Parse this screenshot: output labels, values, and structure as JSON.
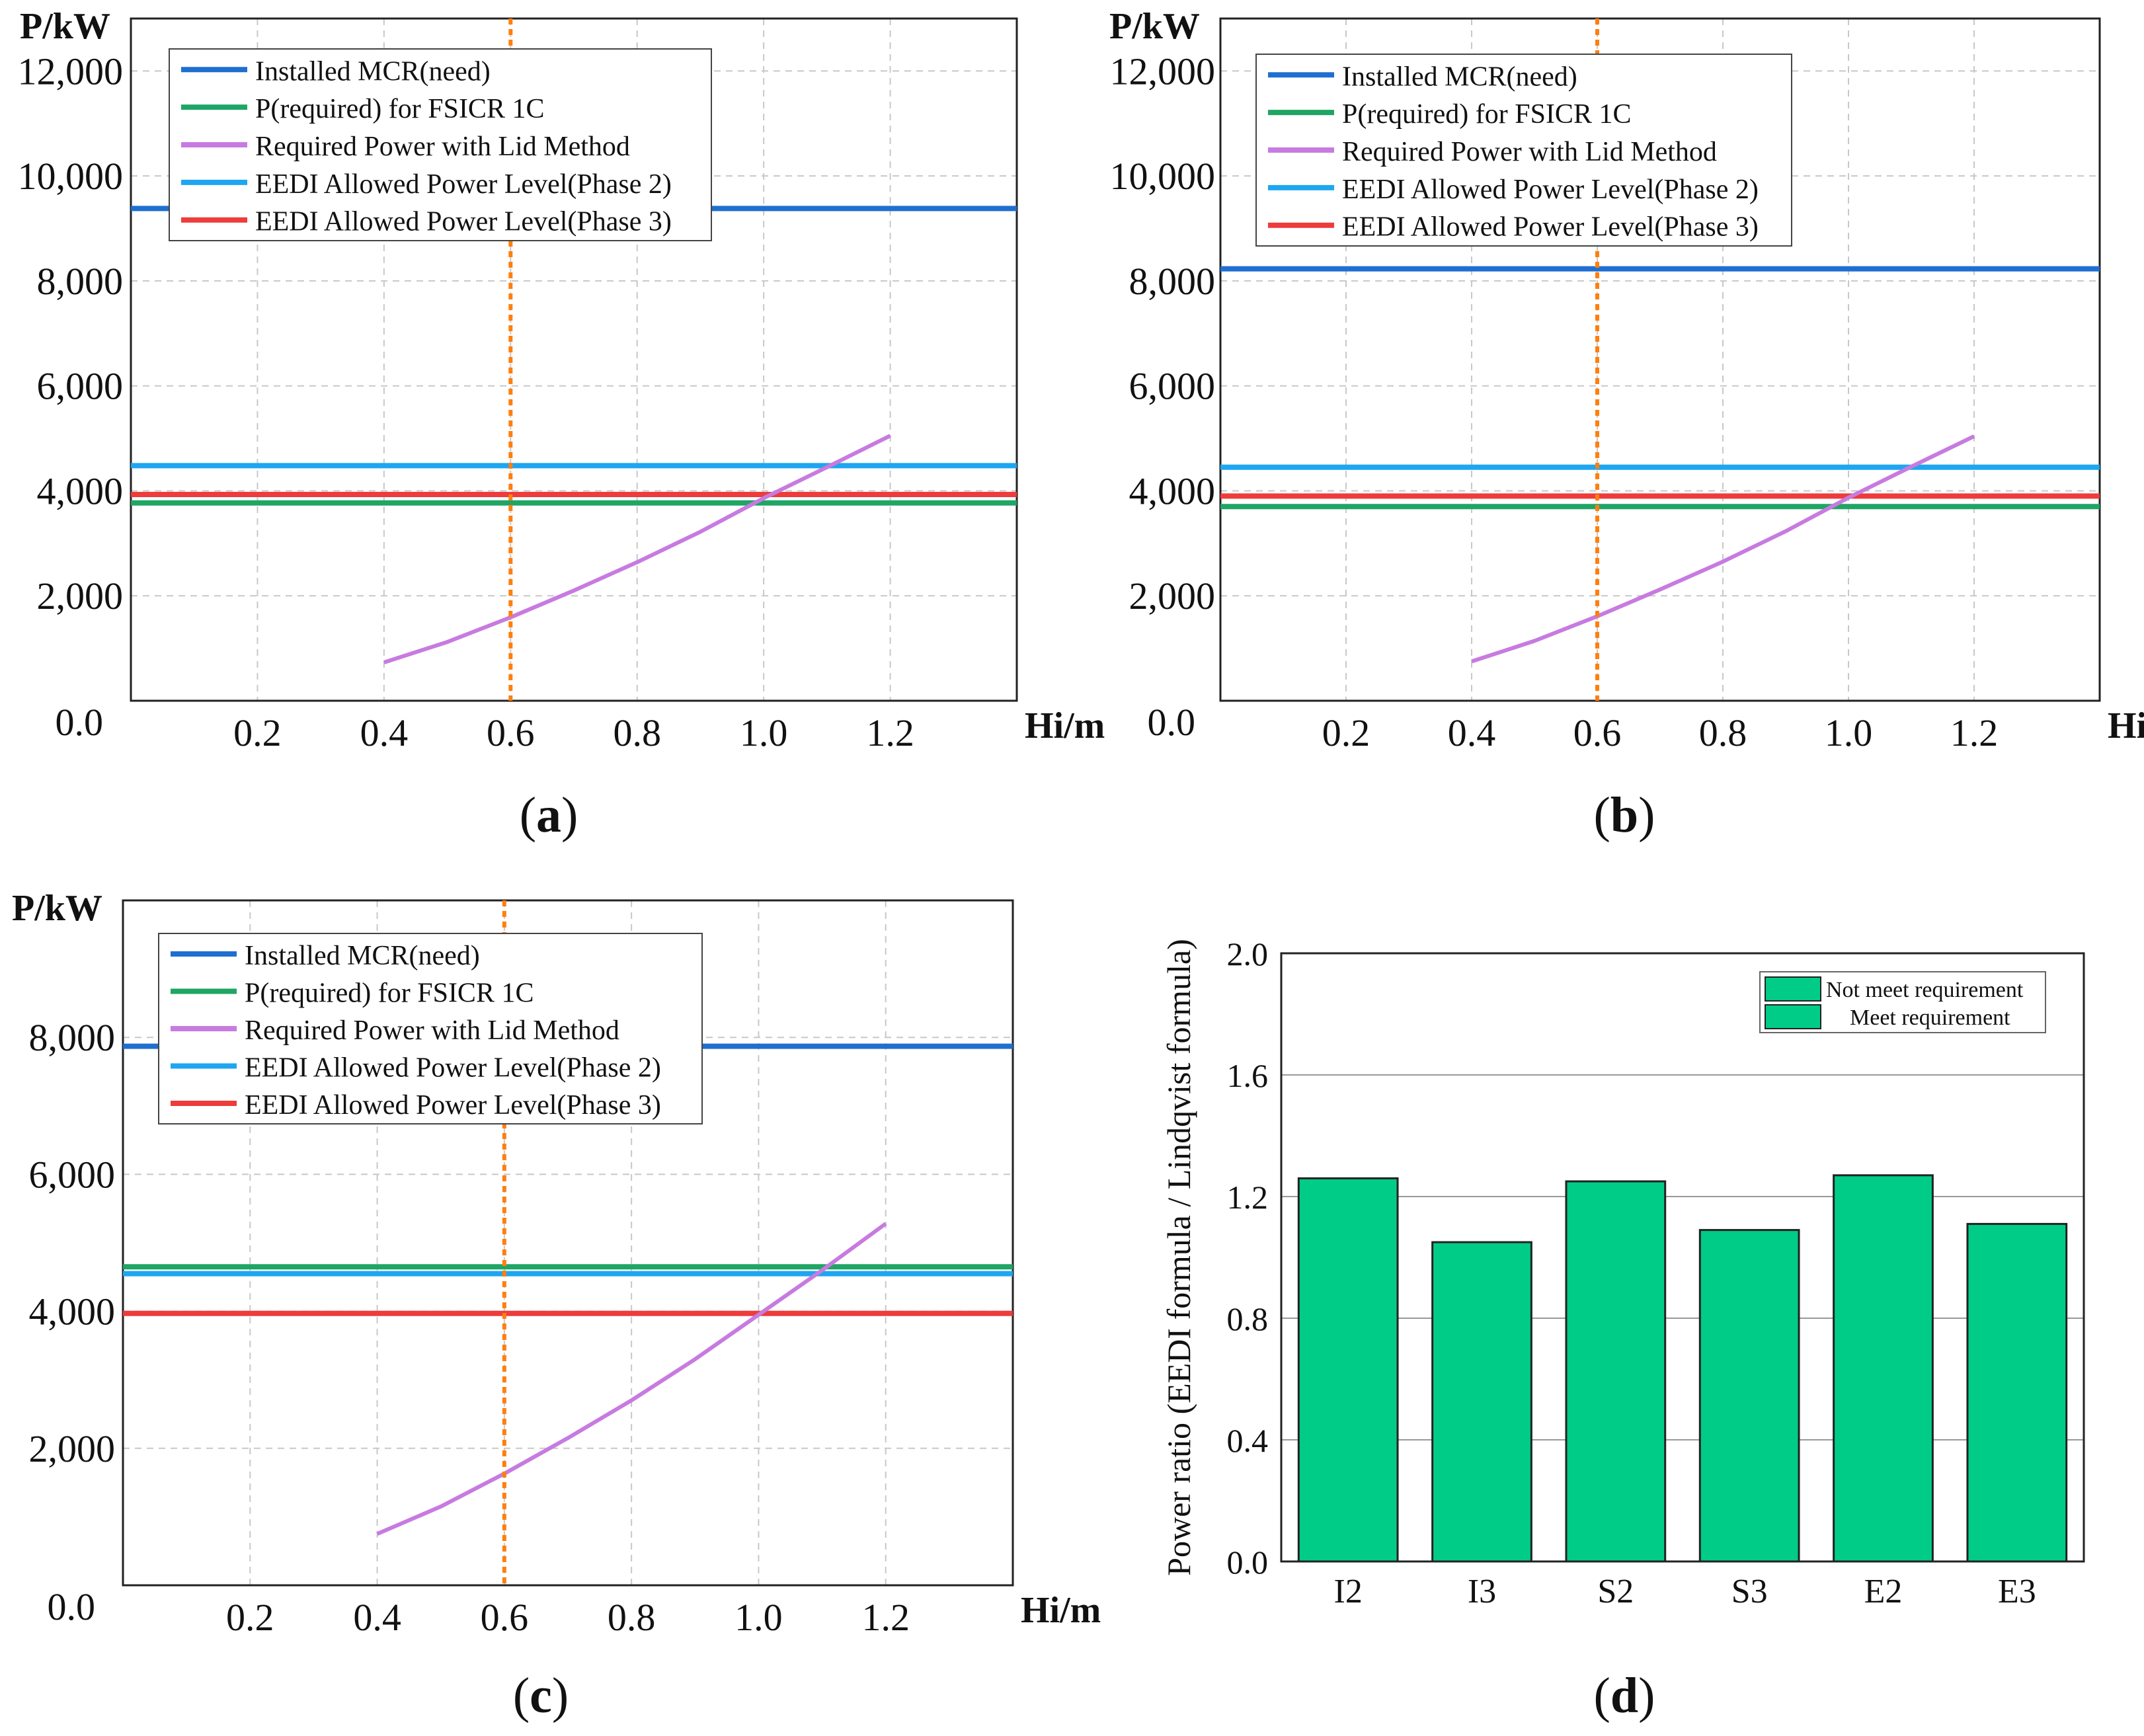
{
  "colors": {
    "mcr": "#1f6fd0",
    "fsicr": "#1fa564",
    "lid": "#c77be0",
    "phase2": "#1ea6f0",
    "phase3": "#ee3b3b",
    "marker": "#ff7f0e",
    "bar_fill": "#00cc88",
    "grid": "#c8c8c8"
  },
  "panel_labels": [
    "a",
    "b",
    "c",
    "d"
  ],
  "chart_data": [
    {
      "type": "line",
      "panel": "a",
      "ylabel": "P/kW",
      "xlabel": "Hi/m",
      "xlim": [
        0.0,
        1.4
      ],
      "ylim": [
        0,
        13000
      ],
      "y_ticks": [
        2000,
        4000,
        6000,
        8000,
        10000,
        12000
      ],
      "y_tick_labels": [
        "2,000",
        "4,000",
        "6,000",
        "8,000",
        "10,000",
        "12,000"
      ],
      "x_ticks": [
        0.2,
        0.4,
        0.6,
        0.8,
        1.0,
        1.2
      ],
      "x_tick_labels": [
        "0.2",
        "0.4",
        "0.6",
        "0.8",
        "1.0",
        "1.2"
      ],
      "origin_label": "0.0",
      "vline_x": 0.6,
      "legend": [
        "Installed MCR(need)",
        "P(required) for FSICR 1C",
        "Required Power with Lid Method",
        "EEDI Allowed Power Level(Phase 2)",
        "EEDI Allowed Power Level(Phase 3)"
      ],
      "hlines": {
        "mcr": 9380,
        "fsicr": 3770,
        "phase2": 4480,
        "phase3": 3930
      },
      "lid_curve": {
        "x": [
          0.4,
          0.5,
          0.6,
          0.7,
          0.8,
          0.9,
          1.0,
          1.1,
          1.2
        ],
        "y": [
          730,
          1120,
          1590,
          2100,
          2640,
          3220,
          3860,
          4450,
          5050
        ]
      }
    },
    {
      "type": "line",
      "panel": "b",
      "ylabel": "P/kW",
      "xlabel": "Hi/m",
      "xlim": [
        0.0,
        1.4
      ],
      "ylim": [
        0,
        13000
      ],
      "y_ticks": [
        2000,
        4000,
        6000,
        8000,
        10000,
        12000
      ],
      "y_tick_labels": [
        "2,000",
        "4,000",
        "6,000",
        "8,000",
        "10,000",
        "12,000"
      ],
      "x_ticks": [
        0.2,
        0.4,
        0.6,
        0.8,
        1.0,
        1.2
      ],
      "x_tick_labels": [
        "0.2",
        "0.4",
        "0.6",
        "0.8",
        "1.0",
        "1.2"
      ],
      "origin_label": "0.0",
      "vline_x": 0.6,
      "legend": [
        "Installed MCR(need)",
        "P(required) for FSICR 1C",
        "Required Power with Lid Method",
        "EEDI Allowed Power Level(Phase 2)",
        "EEDI Allowed Power Level(Phase 3)"
      ],
      "hlines": {
        "mcr": 8230,
        "fsicr": 3700,
        "phase2": 4450,
        "phase3": 3900
      },
      "lid_curve": {
        "x": [
          0.4,
          0.5,
          0.6,
          0.7,
          0.8,
          0.9,
          1.0,
          1.1,
          1.2
        ],
        "y": [
          750,
          1140,
          1610,
          2120,
          2650,
          3230,
          3870,
          4460,
          5040
        ]
      }
    },
    {
      "type": "line",
      "panel": "c",
      "ylabel": "P/kW",
      "xlabel": "Hi/m",
      "xlim": [
        0.0,
        1.4
      ],
      "ylim": [
        0,
        10000
      ],
      "y_ticks": [
        2000,
        4000,
        6000,
        8000
      ],
      "y_tick_labels": [
        "2,000",
        "4,000",
        "6,000",
        "8,000"
      ],
      "x_ticks": [
        0.2,
        0.4,
        0.6,
        0.8,
        1.0,
        1.2
      ],
      "x_tick_labels": [
        "0.2",
        "0.4",
        "0.6",
        "0.8",
        "1.0",
        "1.2"
      ],
      "origin_label": "0.0",
      "vline_x": 0.6,
      "legend": [
        "Installed MCR(need)",
        "P(required) for FSICR 1C",
        "Required Power with Lid Method",
        "EEDI Allowed Power Level(Phase 2)",
        "EEDI Allowed Power Level(Phase 3)"
      ],
      "hlines": {
        "mcr": 7870,
        "fsicr": 4650,
        "phase2": 4550,
        "phase3": 3970
      },
      "lid_curve": {
        "x": [
          0.4,
          0.5,
          0.6,
          0.7,
          0.8,
          0.9,
          1.0,
          1.1,
          1.2
        ],
        "y": [
          750,
          1150,
          1630,
          2150,
          2700,
          3300,
          3950,
          4600,
          5280
        ]
      }
    },
    {
      "type": "bar",
      "panel": "d",
      "ylabel": "Power ratio (EEDI formula / Lindqvist formula)",
      "categories": [
        "I2",
        "I3",
        "S2",
        "S3",
        "E2",
        "E3"
      ],
      "values": [
        1.26,
        1.05,
        1.25,
        1.09,
        1.27,
        1.11
      ],
      "ylim": [
        0.0,
        2.0
      ],
      "y_ticks": [
        0.0,
        0.4,
        0.8,
        1.2,
        1.6,
        2.0
      ],
      "y_tick_labels": [
        "0.0",
        "0.4",
        "0.8",
        "1.2",
        "1.6",
        "2.0"
      ],
      "legend": [
        "Not meet requirement",
        "Meet requirement"
      ]
    }
  ]
}
